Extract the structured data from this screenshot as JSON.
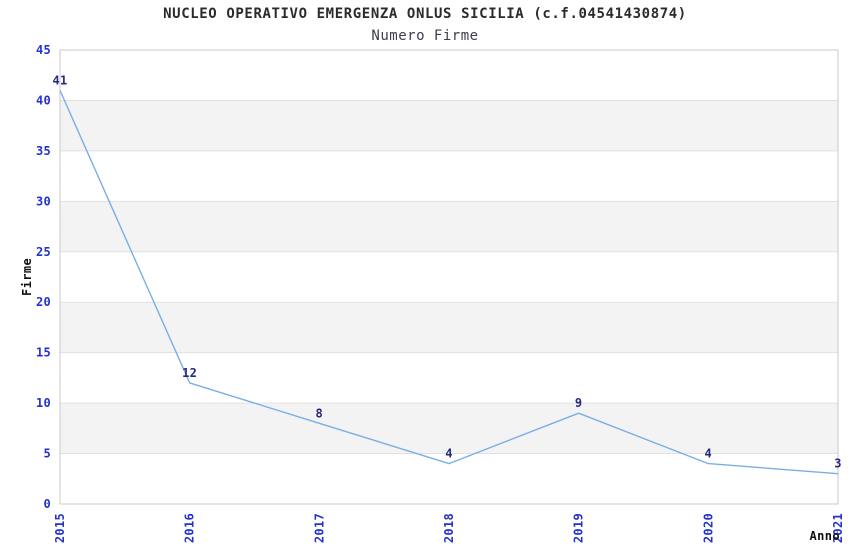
{
  "chart_data": {
    "type": "line",
    "title": "NUCLEO OPERATIVO EMERGENZA ONLUS SICILIA (c.f.04541430874)",
    "subtitle": "Numero Firme",
    "xlabel": "Anno",
    "ylabel": "Firme",
    "categories": [
      "2015",
      "2016",
      "2017",
      "2018",
      "2019",
      "2020",
      "2021"
    ],
    "values": [
      41,
      12,
      8,
      4,
      9,
      4,
      3
    ],
    "data_labels": [
      "41",
      "12",
      "8",
      "4",
      "9",
      "4",
      "3"
    ],
    "ylim": [
      0,
      45
    ],
    "ytick_step": 5,
    "yticks": [
      "0",
      "5",
      "10",
      "15",
      "20",
      "25",
      "30",
      "35",
      "40",
      "45"
    ],
    "grid": "alternating horizontal bands every 5 units",
    "legend": "none",
    "colors": {
      "line": "#79afe5",
      "tick_label": "#2432cc",
      "data_label": "#28287d",
      "band": "#f3f3f3",
      "gridline": "#e1e1e1",
      "border": "#c9c9c9",
      "title": "#2b2b2b",
      "subtitle": "#3c3c52",
      "axis_title": "#111111",
      "background": "#ffffff"
    }
  }
}
